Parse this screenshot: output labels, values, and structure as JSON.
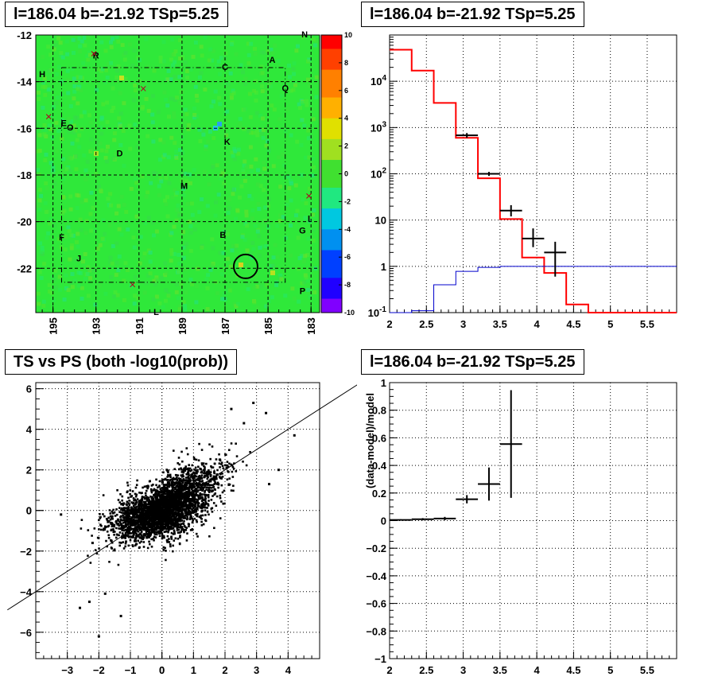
{
  "colors": {
    "axis": "#000000",
    "grid": "#000000",
    "model": "#ff0000",
    "baseline": "#0000cc",
    "data": "#000000",
    "map_bg": "#2fe83a"
  },
  "panels": {
    "map": {
      "title": "l=186.04 b=-21.92 TSp=5.25"
    },
    "spectrum": {
      "title": "l=186.04 b=-21.92 TSp=5.25"
    },
    "scatter": {
      "title": "TS vs PS (both -log10(prob))"
    },
    "residual": {
      "title": "l=186.04 b=-21.92 TSp=5.25"
    }
  },
  "chart_data": [
    {
      "type": "heatmap",
      "title": "l=186.04 b=-21.92 TSp=5.25",
      "xlim": [
        195.8,
        182.6
      ],
      "ylim": [
        -23.9,
        -12
      ],
      "x_ticks": [
        "195",
        "193",
        "191",
        "189",
        "187",
        "185",
        "183"
      ],
      "y_ticks": [
        "-12",
        "-14",
        "-16",
        "-18",
        "-20",
        "-22"
      ],
      "colorbar": {
        "range": [
          -10,
          10
        ],
        "ticks": [
          "10",
          "8",
          "6",
          "4",
          "2",
          "0",
          "-2",
          "-4",
          "-6",
          "-8",
          "-10"
        ]
      },
      "labels": [
        {
          "text": "R",
          "l": 193.0,
          "b": -13.0
        },
        {
          "text": "C",
          "l": 187.0,
          "b": -13.5
        },
        {
          "text": "A",
          "l": 184.8,
          "b": -13.2
        },
        {
          "text": "N",
          "l": 183.3,
          "b": -12.1
        },
        {
          "text": "H",
          "l": 195.5,
          "b": -13.8
        },
        {
          "text": "Q",
          "l": 184.2,
          "b": -14.4
        },
        {
          "text": "E",
          "l": 194.5,
          "b": -15.9
        },
        {
          "text": "O",
          "l": 194.2,
          "b": -16.1
        },
        {
          "text": "K",
          "l": 186.9,
          "b": -16.7
        },
        {
          "text": "D",
          "l": 191.9,
          "b": -17.2
        },
        {
          "text": "M",
          "l": 188.9,
          "b": -18.6
        },
        {
          "text": "F",
          "l": 194.6,
          "b": -20.8
        },
        {
          "text": "B",
          "l": 187.1,
          "b": -20.7
        },
        {
          "text": "G",
          "l": 183.4,
          "b": -20.5
        },
        {
          "text": "I",
          "l": 183.1,
          "b": -20.0
        },
        {
          "text": "J",
          "l": 193.8,
          "b": -21.7
        },
        {
          "text": "P",
          "l": 183.4,
          "b": -23.1
        },
        {
          "text": "L",
          "l": 190.2,
          "b": -24.0
        }
      ],
      "crosses": [
        {
          "l": 193.1,
          "b": -12.8
        },
        {
          "l": 190.8,
          "b": -14.3
        },
        {
          "l": 195.2,
          "b": -15.5
        },
        {
          "l": 183.1,
          "b": -18.9
        },
        {
          "l": 191.3,
          "b": -22.7
        }
      ],
      "circle": {
        "l": 186.04,
        "b": -21.92
      }
    },
    {
      "type": "line",
      "title": "l=186.04 b=-21.92 TSp=5.25",
      "xlim": [
        2,
        5.9
      ],
      "ylim": [
        0.1,
        100000
      ],
      "yscale": "log",
      "x_ticks": [
        "2",
        "2.5",
        "3",
        "3.5",
        "4",
        "4.5",
        "5",
        "5.5"
      ],
      "y_ticks": [
        "10^-1",
        "1",
        "10",
        "10^2",
        "10^3",
        "10^4"
      ],
      "bin_edges": [
        2.0,
        2.3,
        2.6,
        2.9,
        3.2,
        3.5,
        3.8,
        4.1,
        4.4,
        4.7,
        5.0,
        5.3,
        5.6,
        5.9
      ],
      "series": [
        {
          "values": [
            48000,
            17000,
            3400,
            600,
            80,
            10.5,
            1.55,
            0.72,
            0.15,
            0.1,
            0.1,
            0.1,
            0.1
          ],
          "color": "#ff0000"
        },
        {
          "values": [
            0.1,
            0.11,
            0.4,
            0.78,
            0.95,
            1.0,
            1.0,
            1.0,
            1.0,
            1.0,
            1.0,
            1.0,
            1.0
          ],
          "color": "#0000cc"
        }
      ],
      "points": [
        {
          "x": 3.05,
          "y": 680,
          "ylo": 600,
          "yhi": 760
        },
        {
          "x": 3.35,
          "y": 100,
          "ylo": 90,
          "yhi": 110
        },
        {
          "x": 3.65,
          "y": 16,
          "ylo": 12,
          "yhi": 21
        },
        {
          "x": 3.95,
          "y": 4,
          "ylo": 2.6,
          "yhi": 6.6
        },
        {
          "x": 4.25,
          "y": 2,
          "ylo": 0.6,
          "yhi": 3.4
        }
      ]
    },
    {
      "type": "scatter",
      "title": "TS vs PS (both -log10(prob))",
      "xlim": [
        -4,
        5
      ],
      "ylim": [
        -7.3,
        6.3
      ],
      "x_ticks": [
        "-3",
        "-2",
        "-1",
        "0",
        "1",
        "2",
        "3",
        "4"
      ],
      "y_ticks": [
        "6",
        "4",
        "2",
        "0",
        "-2",
        "-4",
        "-6"
      ],
      "reference_line": {
        "slope": 1,
        "intercept": 0
      },
      "n_points": 3200,
      "outliers": [
        [
          -3.2,
          -0.2
        ],
        [
          -2.6,
          -4.8
        ],
        [
          -2.0,
          -6.2
        ],
        [
          -2.3,
          -4.5
        ],
        [
          -1.3,
          -5.2
        ],
        [
          -1.8,
          -4.1
        ],
        [
          2.2,
          5.0
        ],
        [
          2.9,
          5.3
        ],
        [
          3.3,
          4.8
        ],
        [
          3.7,
          2.0
        ],
        [
          4.2,
          3.7
        ],
        [
          3.4,
          1.3
        ],
        [
          2.6,
          4.3
        ],
        [
          -1.6,
          -1.5
        ],
        [
          -2.2,
          -1.6
        ]
      ]
    },
    {
      "type": "scatter",
      "title": "l=186.04 b=-21.92 TSp=5.25",
      "ylabel": "(data-model)/model",
      "xlim": [
        2,
        5.9
      ],
      "ylim": [
        -1,
        1
      ],
      "x_ticks": [
        "2",
        "2.5",
        "3",
        "3.5",
        "4",
        "4.5",
        "5",
        "5.5"
      ],
      "y_ticks": [
        "1",
        "0.8",
        "0.6",
        "0.4",
        "0.2",
        "0",
        "-0.2",
        "-0.4",
        "-0.6",
        "-0.8",
        "-1"
      ],
      "points": [
        {
          "x": 2.15,
          "y": 0.005,
          "yerr": 0.005,
          "xerr": 0.15
        },
        {
          "x": 2.45,
          "y": 0.01,
          "yerr": 0.008,
          "xerr": 0.15
        },
        {
          "x": 2.75,
          "y": 0.015,
          "yerr": 0.012,
          "xerr": 0.15
        },
        {
          "x": 3.05,
          "y": 0.155,
          "yerr": 0.03,
          "xerr": 0.15
        },
        {
          "x": 3.35,
          "y": 0.265,
          "yerr": 0.12,
          "xerr": 0.15
        },
        {
          "x": 3.65,
          "y": 0.555,
          "yerr": 0.39,
          "xerr": 0.15
        }
      ]
    }
  ]
}
